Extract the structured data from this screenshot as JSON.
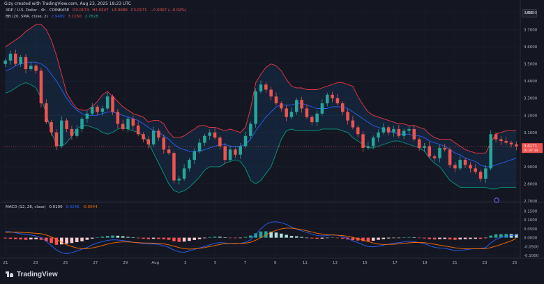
{
  "header": {
    "caption": "Gizy created with TradingView.com, Aug 23, 2025 18:23 UTC",
    "currency": "USD"
  },
  "legend": {
    "symbol": "XRP / U.S. Dollar · 4h · COINBASE",
    "open": "O3.0174",
    "high": "H3.0247",
    "low": "L3.0089",
    "close": "C3.0171",
    "change": "−0.0007 (−0.02%)",
    "bb_name": "BB (20, SMA, close, 2)",
    "bb_basis": "2.9489",
    "bb_upper": "3.1150",
    "bb_lower": "2.7828",
    "macd_name": "MACD (12, 26, close)",
    "macd_hist": "0.0190",
    "macd_line": "0.0146",
    "macd_signal": "-0.0044"
  },
  "colors": {
    "up": "#26a69a",
    "down": "#ef5350",
    "bb_basis": "#2962ff",
    "bb_band": "#f23645",
    "bb_lower": "#089981",
    "macd_line": "#2962ff",
    "signal_line": "#ff6d00"
  },
  "brand": "TradingView",
  "chart_data": [
    {
      "type": "candlestick",
      "ylim": [
        2.7,
        3.8
      ],
      "price_ticks": [
        "3.8000",
        "3.7000",
        "3.6000",
        "3.5000",
        "3.4000",
        "3.3000",
        "3.2000",
        "3.1000",
        "3.0000",
        "2.9000",
        "2.8000",
        "2.7000"
      ],
      "last_price": "3.0171",
      "countdown": "01:37:34",
      "x_ticks": [
        "21",
        "23",
        "25",
        "27",
        "29",
        "Aug",
        "3",
        "5",
        "7",
        "9",
        "11",
        "13",
        "15",
        "17",
        "19",
        "21",
        "23",
        "25"
      ],
      "close_path": [
        3.52,
        3.56,
        3.5,
        3.54,
        3.47,
        3.49,
        3.46,
        3.27,
        3.16,
        3.1,
        3.02,
        3.17,
        3.12,
        3.08,
        3.12,
        3.18,
        3.21,
        3.25,
        3.22,
        3.24,
        3.31,
        3.22,
        3.15,
        3.12,
        3.18,
        3.14,
        3.09,
        3.06,
        3.03,
        3.11,
        3.07,
        3.0,
        2.98,
        2.82,
        2.83,
        2.89,
        2.94,
        2.99,
        3.04,
        3.08,
        3.1,
        3.07,
        3.02,
        2.94,
        3.0,
        2.97,
        3.02,
        3.08,
        3.15,
        3.34,
        3.38,
        3.35,
        3.31,
        3.27,
        3.24,
        3.19,
        3.22,
        3.29,
        3.24,
        3.19,
        3.16,
        3.21,
        3.27,
        3.32,
        3.3,
        3.27,
        3.22,
        3.17,
        3.13,
        3.09,
        3.01,
        3.02,
        3.07,
        3.1,
        3.13,
        3.1,
        3.12,
        3.08,
        3.11,
        3.12,
        3.06,
        3.01,
        3.02,
        2.96,
        2.95,
        3.01,
        3.0,
        2.91,
        2.89,
        2.94,
        2.91,
        2.89,
        2.87,
        2.83,
        2.89,
        3.09,
        3.06,
        3.05,
        3.04,
        3.03,
        3.02
      ],
      "bb_upper_path": [
        3.6,
        3.62,
        3.64,
        3.66,
        3.69,
        3.71,
        3.73,
        3.73,
        3.7,
        3.64,
        3.55,
        3.44,
        3.33,
        3.28,
        3.24,
        3.23,
        3.23,
        3.25,
        3.28,
        3.32,
        3.34,
        3.31,
        3.28,
        3.25,
        3.23,
        3.21,
        3.2,
        3.19,
        3.16,
        3.17,
        3.17,
        3.15,
        3.1,
        3.07,
        3.07,
        3.08,
        3.1,
        3.12,
        3.14,
        3.14,
        3.13,
        3.13,
        3.12,
        3.11,
        3.12,
        3.11,
        3.1,
        3.13,
        3.24,
        3.39,
        3.44,
        3.48,
        3.5,
        3.49,
        3.46,
        3.41,
        3.37,
        3.36,
        3.36,
        3.35,
        3.35,
        3.35,
        3.36,
        3.37,
        3.38,
        3.39,
        3.39,
        3.38,
        3.37,
        3.31,
        3.26,
        3.22,
        3.2,
        3.19,
        3.18,
        3.17,
        3.16,
        3.15,
        3.15,
        3.14,
        3.14,
        3.13,
        3.12,
        3.09,
        3.07,
        3.06,
        3.06,
        3.06,
        3.04,
        3.02,
        3.0,
        2.99,
        2.98,
        2.98,
        2.98,
        3.04,
        3.09,
        3.1,
        3.11,
        3.11,
        3.11
      ],
      "bb_basis_path": [
        3.46,
        3.47,
        3.49,
        3.5,
        3.51,
        3.51,
        3.51,
        3.5,
        3.48,
        3.44,
        3.4,
        3.35,
        3.3,
        3.26,
        3.23,
        3.21,
        3.2,
        3.2,
        3.2,
        3.21,
        3.22,
        3.22,
        3.21,
        3.2,
        3.19,
        3.18,
        3.17,
        3.15,
        3.13,
        3.11,
        3.1,
        3.08,
        3.06,
        3.03,
        3.01,
        3.0,
        2.99,
        2.99,
        2.99,
        3.0,
        3.01,
        3.02,
        3.03,
        3.03,
        3.02,
        3.02,
        3.02,
        3.03,
        3.06,
        3.11,
        3.15,
        3.19,
        3.22,
        3.25,
        3.26,
        3.26,
        3.26,
        3.27,
        3.27,
        3.26,
        3.25,
        3.24,
        3.24,
        3.24,
        3.25,
        3.25,
        3.25,
        3.24,
        3.22,
        3.2,
        3.18,
        3.16,
        3.14,
        3.13,
        3.12,
        3.11,
        3.1,
        3.09,
        3.09,
        3.09,
        3.08,
        3.08,
        3.07,
        3.05,
        3.04,
        3.03,
        3.02,
        3.0,
        2.98,
        2.97,
        2.95,
        2.94,
        2.93,
        2.91,
        2.9,
        2.9,
        2.91,
        2.92,
        2.93,
        2.94,
        2.95
      ],
      "bb_lower_path": [
        3.33,
        3.34,
        3.36,
        3.38,
        3.39,
        3.38,
        3.36,
        3.3,
        3.21,
        3.1,
        3.03,
        3.02,
        3.04,
        3.08,
        3.12,
        3.14,
        3.14,
        3.13,
        3.12,
        3.1,
        3.09,
        3.1,
        3.12,
        3.13,
        3.12,
        3.11,
        3.1,
        3.08,
        3.04,
        2.98,
        2.92,
        2.86,
        2.8,
        2.76,
        2.75,
        2.76,
        2.78,
        2.81,
        2.84,
        2.88,
        2.9,
        2.9,
        2.9,
        2.92,
        2.93,
        2.94,
        2.93,
        2.89,
        2.82,
        2.8,
        2.82,
        2.86,
        2.9,
        2.98,
        3.06,
        3.11,
        3.12,
        3.11,
        3.11,
        3.11,
        3.11,
        3.11,
        3.12,
        3.12,
        3.12,
        3.12,
        3.11,
        3.1,
        3.07,
        3.05,
        3.03,
        3.01,
        3.01,
        3.02,
        3.03,
        3.04,
        3.05,
        3.05,
        3.04,
        3.03,
        3.02,
        3.01,
        2.99,
        2.95,
        2.92,
        2.9,
        2.86,
        2.82,
        2.8,
        2.78,
        2.78,
        2.78,
        2.78,
        2.78,
        2.78,
        2.77,
        2.77,
        2.78,
        2.78,
        2.78,
        2.78
      ]
    },
    {
      "type": "bar",
      "title": "MACD",
      "ylim": [
        -0.1,
        0.16
      ],
      "y_ticks": [
        "0.1500",
        "0.1000",
        "0.0500",
        "0.0000",
        "-0.0500",
        "-0.1000"
      ],
      "histogram": [
        -0.004,
        -0.006,
        -0.008,
        -0.01,
        -0.012,
        -0.01,
        -0.009,
        -0.012,
        -0.02,
        -0.03,
        -0.04,
        -0.038,
        -0.034,
        -0.03,
        -0.025,
        -0.02,
        -0.012,
        -0.005,
        0.002,
        0.006,
        0.01,
        0.012,
        0.011,
        0.008,
        0.004,
        0.001,
        -0.003,
        -0.006,
        -0.008,
        -0.006,
        -0.007,
        -0.009,
        -0.012,
        -0.02,
        -0.024,
        -0.022,
        -0.018,
        -0.013,
        -0.008,
        -0.003,
        0.003,
        0.006,
        0.005,
        0.001,
        -0.002,
        -0.003,
        -0.001,
        0.004,
        0.012,
        0.025,
        0.035,
        0.036,
        0.034,
        0.029,
        0.023,
        0.016,
        0.01,
        0.008,
        0.004,
        0.0,
        -0.004,
        -0.006,
        -0.005,
        -0.002,
        0.001,
        -0.002,
        -0.005,
        -0.01,
        -0.014,
        -0.016,
        -0.019,
        -0.02,
        -0.017,
        -0.012,
        -0.008,
        -0.004,
        -0.002,
        -0.001,
        0.001,
        0.003,
        0.002,
        -0.002,
        -0.004,
        -0.008,
        -0.01,
        -0.008,
        -0.007,
        -0.01,
        -0.012,
        -0.01,
        -0.008,
        -0.007,
        -0.006,
        -0.006,
        -0.002,
        0.012,
        0.019,
        0.02,
        0.021,
        0.02,
        0.019
      ],
      "macd_path": [
        0.035,
        0.033,
        0.028,
        0.022,
        0.018,
        0.015,
        0.01,
        0.0,
        -0.02,
        -0.045,
        -0.07,
        -0.085,
        -0.09,
        -0.085,
        -0.075,
        -0.065,
        -0.055,
        -0.04,
        -0.03,
        -0.022,
        -0.015,
        -0.012,
        -0.013,
        -0.016,
        -0.02,
        -0.026,
        -0.03,
        -0.034,
        -0.036,
        -0.035,
        -0.038,
        -0.045,
        -0.055,
        -0.07,
        -0.08,
        -0.082,
        -0.075,
        -0.066,
        -0.058,
        -0.05,
        -0.04,
        -0.032,
        -0.028,
        -0.03,
        -0.034,
        -0.035,
        -0.032,
        -0.026,
        -0.012,
        0.02,
        0.05,
        0.075,
        0.088,
        0.09,
        0.085,
        0.075,
        0.06,
        0.048,
        0.038,
        0.03,
        0.02,
        0.012,
        0.01,
        0.012,
        0.016,
        0.014,
        0.006,
        -0.005,
        -0.018,
        -0.028,
        -0.04,
        -0.05,
        -0.052,
        -0.048,
        -0.042,
        -0.036,
        -0.032,
        -0.028,
        -0.024,
        -0.02,
        -0.022,
        -0.028,
        -0.034,
        -0.045,
        -0.055,
        -0.058,
        -0.06,
        -0.066,
        -0.072,
        -0.072,
        -0.068,
        -0.064,
        -0.062,
        -0.062,
        -0.056,
        -0.03,
        -0.01,
        0.002,
        0.008,
        0.012,
        0.0146
      ],
      "signal_path": [
        0.03,
        0.031,
        0.031,
        0.03,
        0.029,
        0.027,
        0.025,
        0.022,
        0.015,
        0.005,
        -0.01,
        -0.025,
        -0.04,
        -0.05,
        -0.058,
        -0.062,
        -0.062,
        -0.058,
        -0.052,
        -0.044,
        -0.036,
        -0.03,
        -0.026,
        -0.024,
        -0.024,
        -0.026,
        -0.028,
        -0.03,
        -0.03,
        -0.031,
        -0.032,
        -0.035,
        -0.04,
        -0.048,
        -0.056,
        -0.062,
        -0.064,
        -0.063,
        -0.06,
        -0.056,
        -0.05,
        -0.044,
        -0.038,
        -0.034,
        -0.033,
        -0.033,
        -0.033,
        -0.031,
        -0.026,
        -0.014,
        0.0,
        0.016,
        0.03,
        0.042,
        0.05,
        0.054,
        0.054,
        0.05,
        0.045,
        0.039,
        0.032,
        0.025,
        0.02,
        0.016,
        0.015,
        0.014,
        0.012,
        0.008,
        0.002,
        -0.006,
        -0.014,
        -0.022,
        -0.03,
        -0.036,
        -0.038,
        -0.038,
        -0.037,
        -0.035,
        -0.032,
        -0.029,
        -0.027,
        -0.027,
        -0.028,
        -0.032,
        -0.037,
        -0.042,
        -0.047,
        -0.052,
        -0.057,
        -0.061,
        -0.063,
        -0.063,
        -0.063,
        -0.063,
        -0.062,
        -0.056,
        -0.048,
        -0.038,
        -0.028,
        -0.018,
        -0.0044
      ]
    }
  ]
}
